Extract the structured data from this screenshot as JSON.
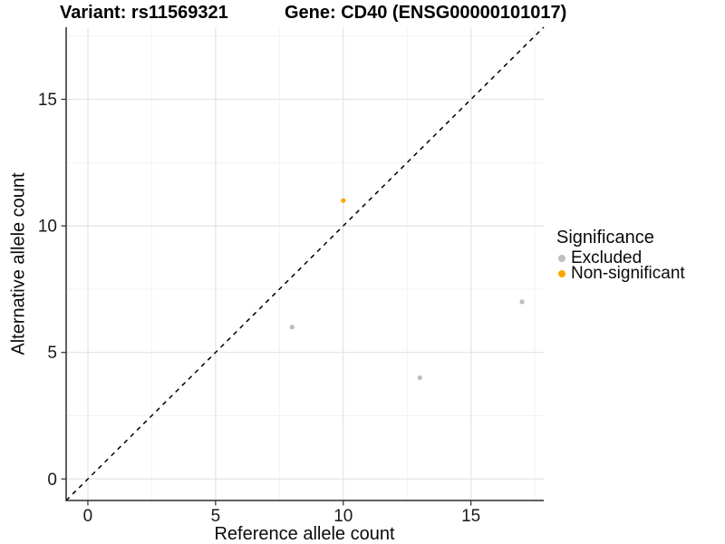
{
  "chart_data": {
    "type": "scatter",
    "title_left": "Variant: rs11569321",
    "title_right": "Gene: CD40 (ENSG00000101017)",
    "xlabel": "Reference allele count",
    "ylabel": "Alternative allele count",
    "xlim": [
      -0.85,
      17.85
    ],
    "ylim": [
      -0.85,
      17.85
    ],
    "x_ticks": [
      0,
      5,
      10,
      15
    ],
    "y_ticks": [
      0,
      5,
      10,
      15
    ],
    "x_minor_ticks": [
      2.5,
      7.5,
      12.5,
      17.5
    ],
    "y_minor_ticks": [
      2.5,
      7.5,
      12.5,
      17.5
    ],
    "grid": "major-and-minor",
    "identity_line": {
      "style": "dashed",
      "from": [
        -0.85,
        -0.85
      ],
      "to": [
        17.85,
        17.85
      ],
      "color": "#000000"
    },
    "series": [
      {
        "name": "Excluded",
        "color": "#BEBEBE",
        "points": [
          [
            8,
            6
          ],
          [
            13,
            4
          ],
          [
            17,
            7
          ]
        ]
      },
      {
        "name": "Non-significant",
        "color": "#FFA500",
        "points": [
          [
            10,
            11
          ]
        ]
      }
    ],
    "legend": {
      "title": "Significance",
      "position": "right"
    }
  },
  "colors": {
    "background": "#FFFFFF",
    "grid_major": "#E4E4E4",
    "grid_minor": "#F2F2F2",
    "axis_line": "#2B2B2B",
    "tick_text": "#1A1A1A",
    "excluded": "#BEBEBE",
    "non_significant": "#FFA500"
  }
}
